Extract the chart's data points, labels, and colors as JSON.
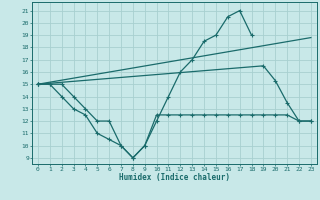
{
  "xlabel": "Humidex (Indice chaleur)",
  "background_color": "#c8e8e8",
  "grid_color": "#a8d0d0",
  "line_color": "#1a6b6b",
  "xlim": [
    -0.5,
    23.5
  ],
  "ylim": [
    8.5,
    21.7
  ],
  "yticks": [
    9,
    10,
    11,
    12,
    13,
    14,
    15,
    16,
    17,
    18,
    19,
    20,
    21
  ],
  "xticks": [
    0,
    1,
    2,
    3,
    4,
    5,
    6,
    7,
    8,
    9,
    10,
    11,
    12,
    13,
    14,
    15,
    16,
    17,
    18,
    19,
    20,
    21,
    22,
    23
  ],
  "curve1_x": [
    0,
    1,
    2,
    3,
    4,
    5,
    6,
    7,
    8,
    9,
    10,
    11,
    12,
    13,
    14,
    15,
    16,
    17,
    18
  ],
  "curve1_y": [
    15,
    15,
    15,
    14,
    13,
    12,
    12,
    10,
    9,
    10,
    12,
    14,
    16,
    17,
    18.5,
    19,
    20.5,
    21,
    19
  ],
  "curve2_x": [
    0,
    1,
    2,
    3,
    4,
    5,
    6,
    7,
    8,
    9,
    10,
    11,
    12,
    13,
    14,
    15,
    16,
    17,
    18,
    19,
    20,
    21,
    22,
    23
  ],
  "curve2_y": [
    15,
    15,
    14,
    13,
    12.5,
    11,
    10.5,
    10,
    9,
    10,
    12.5,
    12.5,
    12.5,
    12.5,
    12.5,
    12.5,
    12.5,
    12.5,
    12.5,
    12.5,
    12.5,
    12.5,
    12,
    12
  ],
  "line3_x": [
    0,
    23
  ],
  "line3_y": [
    15,
    18.8
  ],
  "line4_x": [
    0,
    19,
    20,
    21,
    22,
    23
  ],
  "line4_y": [
    15,
    16.5,
    15.3,
    13.5,
    12,
    12
  ]
}
